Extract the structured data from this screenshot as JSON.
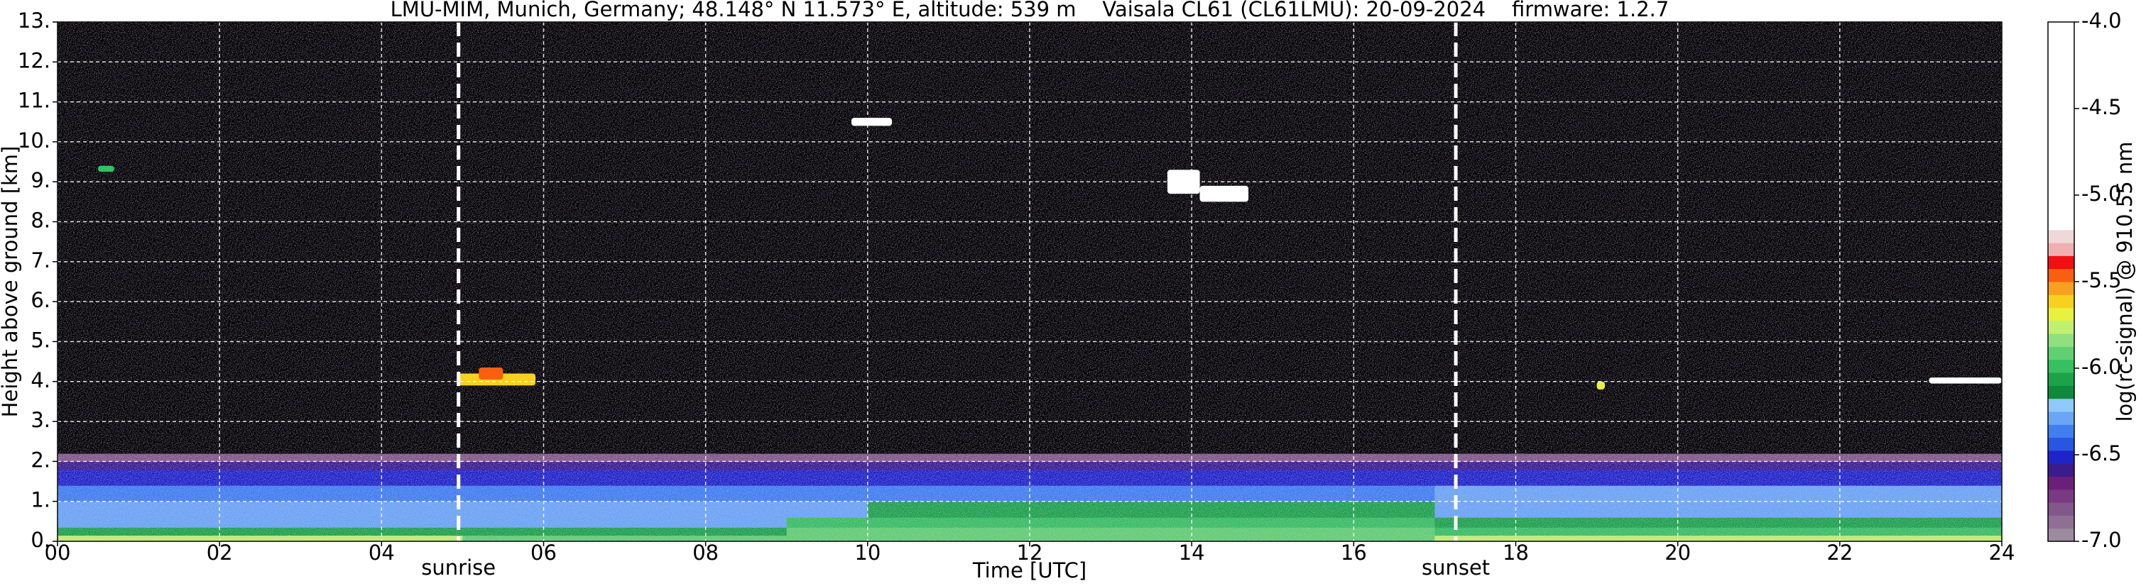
{
  "chart_data": {
    "type": "heatmap",
    "title": "LMU-MIM, Munich, Germany; 48.148° N 11.573° E, altitude: 539 m    Vaisala CL61 (CL61LMU): 20-09-2024    firmware: 1.2.7",
    "xlabel": "Time [UTC]",
    "ylabel": "Height above ground [km]",
    "xlim": [
      0,
      24
    ],
    "ylim": [
      0,
      13
    ],
    "xticks": [
      {
        "value": 0,
        "label": "00"
      },
      {
        "value": 2,
        "label": "02"
      },
      {
        "value": 4,
        "label": "04"
      },
      {
        "value": 6,
        "label": "06"
      },
      {
        "value": 8,
        "label": "08"
      },
      10,
      12,
      14,
      16,
      18,
      20,
      22,
      24
    ],
    "yticks": [
      {
        "value": 0,
        "label": "0."
      },
      {
        "value": 1,
        "label": "1."
      },
      {
        "value": 2,
        "label": "2."
      },
      {
        "value": 3,
        "label": "3."
      },
      {
        "value": 4,
        "label": "4."
      },
      {
        "value": 5,
        "label": "5."
      },
      {
        "value": 6,
        "label": "6."
      },
      {
        "value": 7,
        "label": "7."
      },
      {
        "value": 8,
        "label": "8."
      },
      {
        "value": 9,
        "label": "9."
      },
      {
        "value": 10,
        "label": "10."
      },
      {
        "value": 11,
        "label": "11."
      },
      {
        "value": 12,
        "label": "12."
      },
      {
        "value": 13,
        "label": "13."
      }
    ],
    "grid": true,
    "x_edges": [
      0,
      1,
      2,
      3,
      4,
      5,
      6,
      7,
      8,
      9,
      10,
      11,
      12,
      13,
      14,
      15,
      16,
      17,
      18,
      19,
      20,
      21,
      22,
      23,
      24
    ],
    "y_edges": [
      0,
      0.15,
      0.35,
      0.6,
      1.0,
      1.4,
      1.8,
      2.0,
      2.2,
      13
    ],
    "values": [
      [
        -5.75,
        -5.75,
        -5.75,
        -5.75,
        -5.75,
        -5.9,
        -5.9,
        -5.9,
        -5.9,
        -5.95,
        -5.95,
        -5.95,
        -5.95,
        -5.95,
        -5.95,
        -5.95,
        -5.95,
        -5.8,
        -5.8,
        -5.8,
        -5.8,
        -5.8,
        -5.8,
        -5.8
      ],
      [
        -6.05,
        -6.05,
        -6.05,
        -6.05,
        -6.05,
        -6.05,
        -6.05,
        -6.05,
        -6.05,
        -5.9,
        -5.9,
        -5.9,
        -5.9,
        -5.9,
        -5.9,
        -5.9,
        -5.9,
        -6.0,
        -6.0,
        -6.0,
        -6.0,
        -6.0,
        -6.0,
        -6.0
      ],
      [
        -6.3,
        -6.3,
        -6.3,
        -6.3,
        -6.3,
        -6.3,
        -6.3,
        -6.3,
        -6.3,
        -6.0,
        -6.0,
        -6.0,
        -6.0,
        -6.0,
        -6.0,
        -6.0,
        -6.0,
        -6.08,
        -6.08,
        -6.08,
        -6.08,
        -6.08,
        -6.08,
        -6.08
      ],
      [
        -6.28,
        -6.28,
        -6.28,
        -6.28,
        -6.28,
        -6.28,
        -6.28,
        -6.28,
        -6.28,
        -6.28,
        -6.05,
        -6.05,
        -6.05,
        -6.05,
        -6.05,
        -6.05,
        -6.05,
        -6.3,
        -6.3,
        -6.3,
        -6.3,
        -6.3,
        -6.3,
        -6.3
      ],
      [
        -6.4,
        -6.4,
        -6.4,
        -6.4,
        -6.4,
        -6.4,
        -6.4,
        -6.4,
        -6.4,
        -6.4,
        -6.4,
        -6.4,
        -6.4,
        -6.4,
        -6.4,
        -6.4,
        -6.4,
        -6.3,
        -6.3,
        -6.3,
        -6.3,
        -6.3,
        -6.3,
        -6.3
      ],
      [
        -6.5,
        -6.5,
        -6.5,
        -6.5,
        -6.5,
        -6.5,
        -6.5,
        -6.5,
        -6.5,
        -6.5,
        -6.5,
        -6.5,
        -6.5,
        -6.5,
        -6.5,
        -6.5,
        -6.5,
        -6.5,
        -6.5,
        -6.5,
        -6.5,
        -6.5,
        -6.5,
        -6.5
      ],
      [
        -6.62,
        -6.62,
        -6.62,
        -6.62,
        -6.62,
        -6.62,
        -6.62,
        -6.62,
        -6.62,
        -6.62,
        -6.62,
        -6.62,
        -6.62,
        -6.62,
        -6.62,
        -6.62,
        -6.62,
        -6.62,
        -6.62,
        -6.62,
        -6.62,
        -6.62,
        -6.62,
        -6.62
      ],
      [
        -6.8,
        -6.8,
        -6.8,
        -6.8,
        -6.8,
        -6.8,
        -6.8,
        -6.8,
        -6.8,
        -6.8,
        -6.8,
        -6.8,
        -6.8,
        -6.8,
        -6.8,
        -6.8,
        -6.8,
        -6.8,
        -6.8,
        -6.8,
        -6.8,
        -6.8,
        -6.8,
        -6.8
      ],
      [
        -7.2,
        -7.2,
        -7.2,
        -7.2,
        -7.2,
        -7.2,
        -7.2,
        -7.2,
        -7.2,
        -7.2,
        -7.2,
        -7.2,
        -7.2,
        -7.2,
        -7.2,
        -7.2,
        -7.2,
        -7.2,
        -7.2,
        -7.2,
        -7.2,
        -7.2,
        -7.2,
        -7.2
      ]
    ],
    "features": [
      {
        "x": [
          0.5,
          0.7
        ],
        "y": [
          9.25,
          9.4
        ],
        "value": -6.0
      },
      {
        "x": [
          4.95,
          5.9
        ],
        "y": [
          3.9,
          4.2
        ],
        "value": -5.6
      },
      {
        "x": [
          5.2,
          5.5
        ],
        "y": [
          4.05,
          4.35
        ],
        "value": -5.45
      },
      {
        "x": [
          9.8,
          10.3
        ],
        "y": [
          10.4,
          10.6
        ],
        "value": -4.8
      },
      {
        "x": [
          13.7,
          14.1
        ],
        "y": [
          8.7,
          9.3
        ],
        "value": -4.8
      },
      {
        "x": [
          14.1,
          14.7
        ],
        "y": [
          8.5,
          8.9
        ],
        "value": -5.0
      },
      {
        "x": [
          19.0,
          19.1
        ],
        "y": [
          3.8,
          4.0
        ],
        "value": -5.7
      },
      {
        "x": [
          23.1,
          24
        ],
        "y": [
          3.95,
          4.1
        ],
        "value": -4.5
      }
    ],
    "colorbar": {
      "label": "log(rc-signal) @ 910.55 nm",
      "lim": [
        -7,
        -4
      ],
      "ticks": [
        {
          "value": -4,
          "label": "-4.0"
        },
        -4.5,
        {
          "value": -5,
          "label": "-5.0"
        },
        -5.5,
        {
          "value": -6,
          "label": "-6.0"
        },
        -6.5,
        {
          "value": -7,
          "label": "-7.0"
        }
      ],
      "bounds": [
        -7,
        -6.925,
        -6.85,
        -6.775,
        -6.7,
        -6.625,
        -6.55,
        -6.475,
        -6.4,
        -6.325,
        -6.25,
        -6.175,
        -6.1,
        -6.025,
        -5.95,
        -5.875,
        -5.8,
        -5.725,
        -5.65,
        -5.575,
        -5.5,
        -5.425,
        -5.35,
        -5.275,
        -5.2,
        -4
      ],
      "colors": [
        "#9e8aa0",
        "#8f6f93",
        "#82578a",
        "#7a3a82",
        "#6c1f78",
        "#3a1c8c",
        "#1f24c8",
        "#2a55e0",
        "#3f7ff0",
        "#6aa6f5",
        "#8fc8fa",
        "#0f8a3c",
        "#1ca34a",
        "#36c060",
        "#60d070",
        "#90e080",
        "#c0f070",
        "#e8f040",
        "#f8d020",
        "#f8a020",
        "#f86010",
        "#f01010",
        "#f0b0b0",
        "#f0d8d8",
        "#ffffff"
      ],
      "under_color": "#000000"
    },
    "annotations": [
      {
        "text": "sunrise",
        "x": 4.95
      },
      {
        "text": "sunset",
        "x": 17.26
      }
    ]
  }
}
